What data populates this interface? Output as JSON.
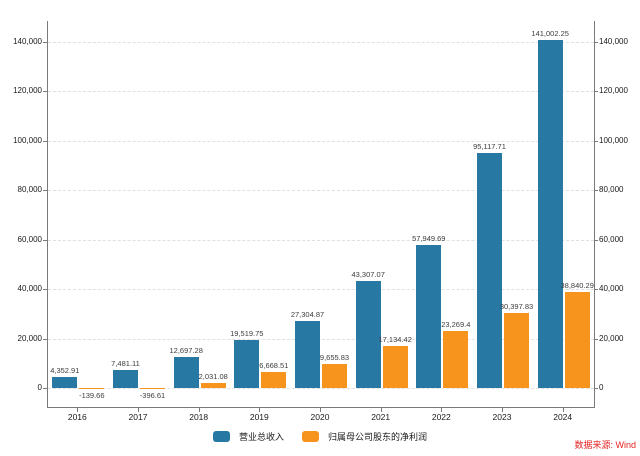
{
  "source_note": "数据来源: Wind",
  "colors": {
    "revenue": "#2878a4",
    "profit": "#f7941d",
    "source_text": "#e62222",
    "axis": "#7a7a7a",
    "grid": "#e0e0e0",
    "bar_label": "#3d3d3d",
    "tick_label": "#1a1a1a"
  },
  "chart_data": {
    "type": "bar",
    "title": "",
    "xlabel": "",
    "ylabel": "",
    "categories": [
      "2016",
      "2017",
      "2018",
      "2019",
      "2020",
      "2021",
      "2022",
      "2023",
      "2024"
    ],
    "series": [
      {
        "key": "revenue",
        "name": "营业总收入",
        "values": [
          4352.91,
          7481.11,
          12697.28,
          19519.75,
          27304.87,
          43307.07,
          57949.69,
          95117.71,
          141002.25
        ],
        "labels": [
          "4,352.91",
          "7,481.11",
          "12,697.28",
          "19,519.75",
          "27,304.87",
          "43,307.07",
          "57,949.69",
          "95,117.71",
          "141,002.25"
        ]
      },
      {
        "key": "profit",
        "name": "归属母公司股东的净利润",
        "values": [
          -139.66,
          -396.61,
          2031.08,
          6668.51,
          9655.83,
          17134.42,
          23269.4,
          30397.83,
          38840.29
        ],
        "labels": [
          "-139.66",
          "-396.61",
          "2,031.08",
          "6,668.51",
          "9,655.83",
          "17,134.42",
          "23,269.4",
          "30,397.83",
          "38,840.29"
        ]
      }
    ],
    "yticks": [
      0,
      20000,
      40000,
      60000,
      80000,
      100000,
      120000,
      140000
    ],
    "ytick_labels": [
      "0",
      "20,000",
      "40,000",
      "60,000",
      "80,000",
      "100,000",
      "120,000",
      "140,000"
    ],
    "ylim": [
      -7700,
      148500
    ],
    "grid": "horizontal-dashed",
    "y_axis_sides": "both",
    "legend_position": "bottom-center"
  }
}
